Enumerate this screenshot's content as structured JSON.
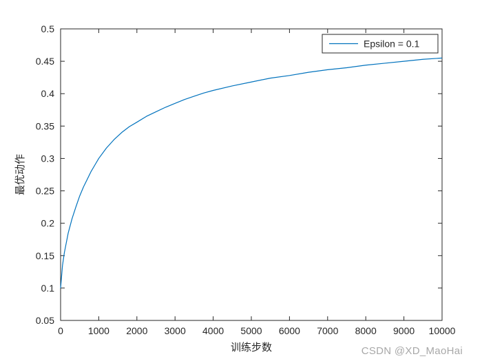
{
  "chart_data": {
    "type": "line",
    "title": "",
    "xlabel": "训练步数",
    "ylabel": "最优动作",
    "xlim": [
      0,
      10000
    ],
    "ylim": [
      0.05,
      0.5
    ],
    "xticks": [
      0,
      1000,
      2000,
      3000,
      4000,
      5000,
      6000,
      7000,
      8000,
      9000,
      10000
    ],
    "xtick_labels": [
      "0",
      "1000",
      "2000",
      "3000",
      "4000",
      "5000",
      "6000",
      "7000",
      "8000",
      "9000",
      "10000"
    ],
    "yticks": [
      0.05,
      0.1,
      0.15,
      0.2,
      0.25,
      0.3,
      0.35,
      0.4,
      0.45,
      0.5
    ],
    "ytick_labels": [
      "0.05",
      "0.1",
      "0.15",
      "0.2",
      "0.25",
      "0.3",
      "0.35",
      "0.4",
      "0.45",
      "0.5"
    ],
    "grid": false,
    "legend_position": "top-right",
    "series": [
      {
        "name": "Epsilon = 0.1",
        "color": "#0072BD",
        "x": [
          0,
          50,
          100,
          200,
          300,
          400,
          500,
          600,
          700,
          800,
          900,
          1000,
          1200,
          1400,
          1600,
          1800,
          2000,
          2250,
          2500,
          2750,
          3000,
          3250,
          3500,
          3750,
          4000,
          4500,
          5000,
          5500,
          6000,
          6500,
          7000,
          7500,
          8000,
          8500,
          9000,
          9500,
          10000
        ],
        "y": [
          0.1,
          0.135,
          0.155,
          0.185,
          0.207,
          0.225,
          0.242,
          0.256,
          0.268,
          0.28,
          0.29,
          0.3,
          0.316,
          0.329,
          0.34,
          0.349,
          0.356,
          0.365,
          0.372,
          0.379,
          0.385,
          0.391,
          0.396,
          0.401,
          0.405,
          0.412,
          0.418,
          0.424,
          0.428,
          0.433,
          0.437,
          0.44,
          0.444,
          0.447,
          0.45,
          0.453,
          0.455
        ]
      }
    ]
  },
  "legend": {
    "label": "Epsilon = 0.1"
  },
  "watermark": "CSDN @XD_MaoHai",
  "colors": {
    "line": "#0072BD",
    "axis": "#262626",
    "tick_text": "#262626",
    "legend_border": "#262626",
    "watermark": "#a8a8a8"
  }
}
